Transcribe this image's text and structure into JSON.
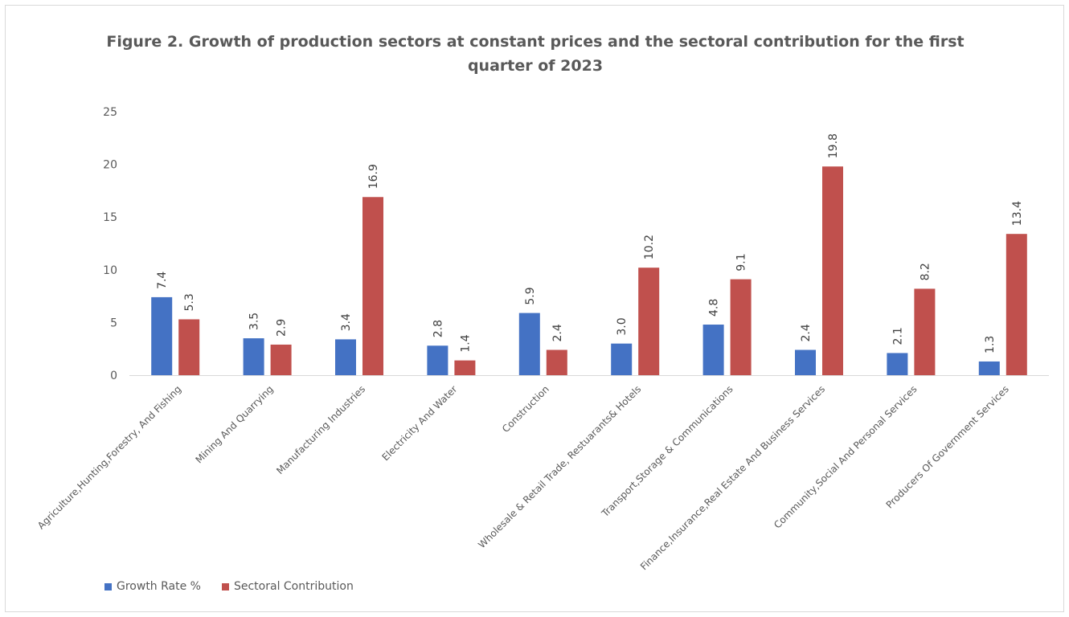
{
  "chart_data": {
    "type": "bar",
    "title_lines": [
      "Figure 2. Growth of production sectors at constant prices and the sectoral contribution for the first",
      "quarter of 2023"
    ],
    "categories": [
      "Agriculture,Hunting,Forestry, And Fishing",
      "Mining And Quarrying",
      "Manufacturing Industries",
      "Electricity And Water",
      "Construction",
      "Wholesale & Retail Trade, Restuarants& Hotels",
      "Transport,Storage & Communications",
      "Finance,Insurance,Real Estate And Business Services",
      "Community,Social And Personal Services",
      "Producers Of Government Services"
    ],
    "series": [
      {
        "name": "Growth Rate %",
        "color": "#4472c4",
        "values": [
          7.4,
          3.5,
          3.4,
          2.8,
          5.9,
          3.0,
          4.8,
          2.4,
          2.1,
          1.3
        ],
        "labels": [
          "7.4",
          "3.5",
          "3.4",
          "2.8",
          "5.9",
          "3.0",
          "4.8",
          "2.4",
          "2.1",
          "1.3"
        ]
      },
      {
        "name": "Sectoral Contribution",
        "color": "#c0504d",
        "values": [
          5.3,
          2.9,
          16.9,
          1.4,
          2.4,
          10.2,
          9.1,
          19.8,
          8.2,
          13.4
        ],
        "labels": [
          "5.3",
          "2.9",
          "16.9",
          "1.4",
          "2.4",
          "10.2",
          "9.1",
          "19.8",
          "8.2",
          "13.4"
        ]
      }
    ],
    "ylim": [
      0,
      25
    ],
    "yticks": [
      "0",
      "5",
      "10",
      "15",
      "20",
      "25"
    ],
    "grid": false,
    "legend_position": "bottom-left",
    "xlabel": "",
    "ylabel": ""
  }
}
